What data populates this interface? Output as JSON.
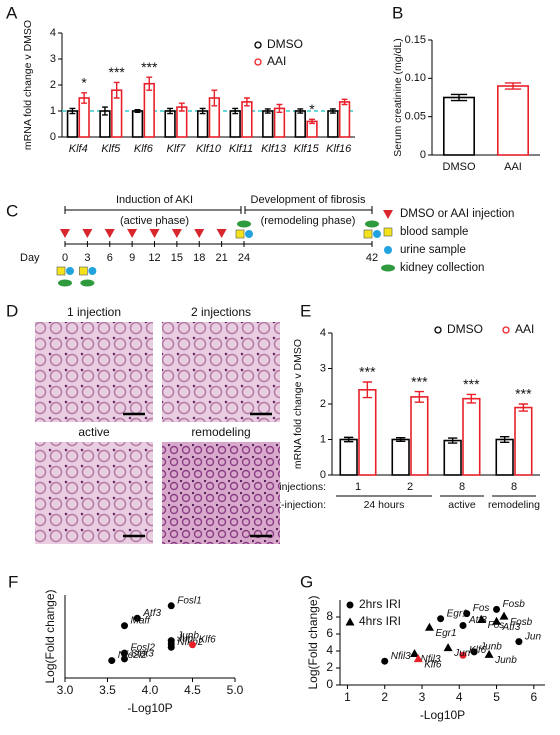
{
  "chart_data": [
    {
      "panel": "A",
      "type": "bar",
      "ylabel": "mRNA fold change v DMSO",
      "categories": [
        "Klf4",
        "Klf5",
        "Klf6",
        "Klf7",
        "Klf10",
        "Klf11",
        "Klf13",
        "Klf15",
        "Klf16"
      ],
      "series": [
        {
          "name": "DMSO",
          "color": "#000000",
          "values": [
            1.0,
            1.0,
            1.0,
            1.0,
            1.0,
            1.0,
            1.0,
            1.0,
            1.0
          ],
          "errors": [
            0.1,
            0.15,
            0.05,
            0.1,
            0.1,
            0.1,
            0.08,
            0.08,
            0.08
          ]
        },
        {
          "name": "AAI",
          "color": "#e8202a",
          "values": [
            1.5,
            1.8,
            2.05,
            1.15,
            1.5,
            1.35,
            1.1,
            0.6,
            1.35
          ],
          "errors": [
            0.2,
            0.3,
            0.25,
            0.15,
            0.3,
            0.15,
            0.15,
            0.08,
            0.1
          ]
        }
      ],
      "ylim": [
        0,
        4
      ],
      "yticks": [
        0,
        1,
        2,
        3,
        4
      ],
      "reference_line": {
        "value": 1,
        "color": "#33cccc"
      },
      "significance": [
        "*",
        "***",
        "***",
        null,
        null,
        null,
        null,
        "*",
        null
      ]
    },
    {
      "panel": "B",
      "type": "bar",
      "ylabel": "Serum creatinine (mg/dL)",
      "categories": [
        "DMSO",
        "AAI"
      ],
      "values": [
        0.075,
        0.09
      ],
      "errors": [
        0.004,
        0.004
      ],
      "colors": [
        "#000000",
        "#e8202a"
      ],
      "ylim": [
        0,
        0.15
      ],
      "yticks": [
        0,
        0.05,
        {
          "value": 0.1,
          "label": "0.10"
        },
        0.15
      ]
    },
    {
      "panel": "E",
      "type": "bar",
      "ylabel": "mRNA fold change v DMSO",
      "categories": [
        "1",
        "2",
        "8",
        "8"
      ],
      "series": [
        {
          "name": "DMSO",
          "color": "#000000",
          "values": [
            1.0,
            1.0,
            0.97,
            1.0
          ],
          "errors": [
            0.06,
            0.05,
            0.07,
            0.08
          ]
        },
        {
          "name": "AAI",
          "color": "#e8202a",
          "values": [
            2.4,
            2.2,
            2.15,
            1.9
          ],
          "errors": [
            0.22,
            0.15,
            0.12,
            0.1
          ]
        }
      ],
      "ylim": [
        0,
        4
      ],
      "yticks": [
        0,
        1,
        2,
        3,
        4
      ],
      "significance": [
        "***",
        "***",
        "***",
        "***"
      ],
      "row_labels": [
        "# injections:",
        "Time post-injection:"
      ],
      "time_labels": [
        "24 hours",
        "active",
        "remodeling"
      ]
    },
    {
      "panel": "F",
      "type": "scatter",
      "xlabel": "-Log10P",
      "ylabel": "Log(Fold change)",
      "xlim": [
        3.0,
        5.0
      ],
      "xticks": [
        {
          "value": 3.0,
          "label": "3.0"
        },
        3.5,
        {
          "value": 4.0,
          "label": "4.0"
        },
        4.5,
        {
          "value": 5.0,
          "label": "5.0"
        }
      ],
      "ylim": [
        0,
        1
      ],
      "series": [
        {
          "marker": "circle",
          "x": [
            4.25,
            3.85,
            3.7,
            4.25,
            4.25,
            4.25,
            4.5,
            3.7,
            3.7,
            3.55
          ],
          "y": [
            0.87,
            0.72,
            0.63,
            0.45,
            0.41,
            0.37,
            0.4,
            0.3,
            0.23,
            0.21
          ],
          "labels": [
            "Fosl1",
            "Atf3",
            "Maff",
            "Junb",
            "Jun",
            "Nfkb2",
            "Klf6",
            "Fosl2",
            "Stat3",
            "Nfe2l2"
          ],
          "colors": [
            "#000000",
            "#000000",
            "#000000",
            "#000000",
            "#000000",
            "#000000",
            "#e8202a",
            "#000000",
            "#000000",
            "#000000"
          ]
        }
      ]
    },
    {
      "panel": "G",
      "type": "scatter",
      "xlabel": "-Log10P",
      "ylabel": "Log(Fold change)",
      "xlim": [
        0.8,
        6.3
      ],
      "xticks": [
        1,
        2,
        3,
        4,
        5,
        6
      ],
      "ylim": [
        0,
        10
      ],
      "yticks": [
        0,
        2,
        4,
        6,
        8
      ],
      "series": [
        {
          "name": "2hrs IRI",
          "marker": "circle",
          "color": "#000000",
          "x": [
            5.0,
            4.2,
            3.5,
            4.1,
            5.6,
            4.4,
            4.1,
            2.0
          ],
          "y": [
            8.9,
            8.4,
            7.8,
            7.0,
            5.1,
            3.9,
            3.5,
            2.8
          ],
          "labels": [
            "Fosb",
            "Fos",
            "Egr1",
            "Atf3",
            "Jun",
            "Junb",
            "Klf6",
            "Nfil3"
          ],
          "colors": [
            "#000000",
            "#000000",
            "#000000",
            "#000000",
            "#000000",
            "#000000",
            "#e8202a",
            "#000000"
          ]
        },
        {
          "name": "4hrs IRI",
          "marker": "triangle",
          "color": "#000000",
          "x": [
            5.2,
            4.6,
            5.0,
            3.2,
            3.7,
            4.8,
            2.8,
            2.9
          ],
          "y": [
            8.1,
            7.7,
            7.5,
            6.8,
            4.4,
            3.6,
            3.7,
            3.1
          ],
          "labels": [
            "Fosb",
            "Fos",
            "Atf3",
            "Egr1",
            "Jun",
            "Junb",
            "Nfil3",
            "Klf6"
          ],
          "colors": [
            "#000000",
            "#000000",
            "#000000",
            "#000000",
            "#000000",
            "#000000",
            "#000000",
            "#e8202a"
          ]
        }
      ]
    }
  ],
  "timeline": {
    "panel": "C",
    "phase_1": {
      "title": "Induction of AKI",
      "subtitle": "(active phase)"
    },
    "phase_2": {
      "title": "Development of fibrosis",
      "subtitle": "(remodeling phase)"
    },
    "day_label": "Day",
    "days": [
      0,
      3,
      6,
      9,
      12,
      15,
      18,
      21,
      24,
      42
    ],
    "injection_days": [
      0,
      3,
      6,
      9,
      12,
      15,
      18,
      21
    ],
    "sample_days": [
      0,
      3,
      24,
      42
    ],
    "legend": [
      "DMSO or AAI injection",
      "blood sample",
      "urine sample",
      "kidney collection"
    ]
  },
  "histology": {
    "panel": "D",
    "images": [
      "1 injection",
      "2 injections",
      "active",
      "remodeling"
    ]
  }
}
